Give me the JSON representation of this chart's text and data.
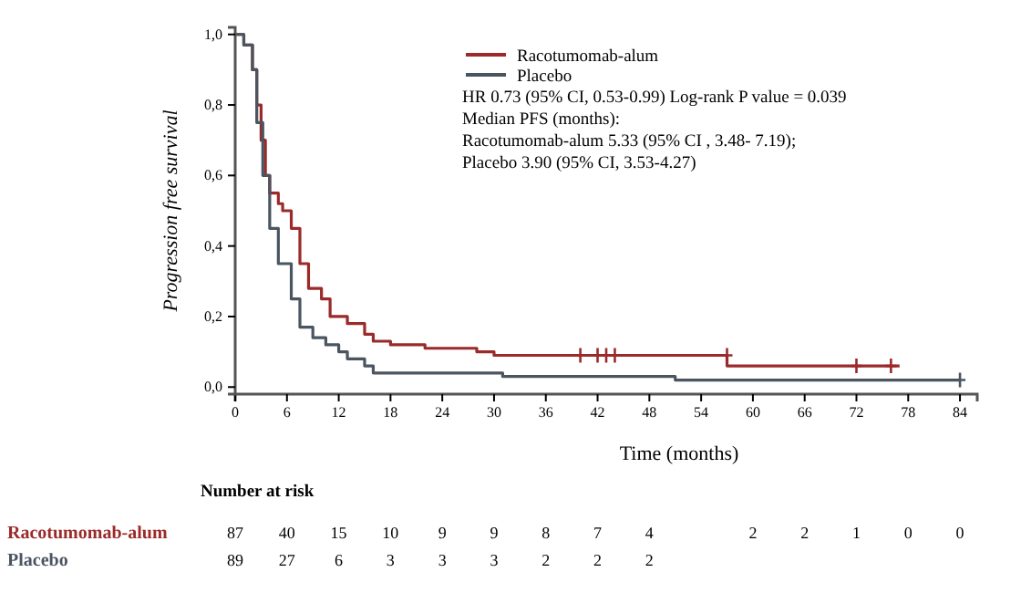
{
  "chart_data": {
    "type": "step",
    "xlabel": "Time (months)",
    "ylabel": "Progression free survival",
    "xlim": [
      0,
      86
    ],
    "ylim": [
      -0.02,
      1.02
    ],
    "xticks": [
      0,
      6,
      12,
      18,
      24,
      30,
      36,
      42,
      48,
      54,
      60,
      66,
      72,
      78,
      84
    ],
    "yticks": [
      {
        "value": 0,
        "label": "0,0"
      },
      {
        "value": 0.2,
        "label": "0,2"
      },
      {
        "value": 0.4,
        "label": "0,4"
      },
      {
        "value": 0.6,
        "label": "0,6"
      },
      {
        "value": 0.8,
        "label": "0,8"
      },
      {
        "value": 1,
        "label": "1,0"
      }
    ],
    "legend": "top",
    "grid": false,
    "marker": "none",
    "series": [
      {
        "name": "Racotumomab-alum",
        "color": "#9b2a2a",
        "x": [
          0,
          1,
          2,
          2.5,
          3,
          3.5,
          4,
          5,
          5.5,
          6.5,
          7.5,
          8.5,
          10,
          11,
          13,
          15,
          16,
          18,
          22,
          28,
          30,
          57,
          77
        ],
        "values": [
          1,
          0.97,
          0.9,
          0.8,
          0.7,
          0.6,
          0.55,
          0.52,
          0.5,
          0.45,
          0.35,
          0.28,
          0.25,
          0.2,
          0.18,
          0.15,
          0.13,
          0.12,
          0.11,
          0.1,
          0.09,
          0.06,
          0.06
        ]
      },
      {
        "name": "Placebo",
        "color": "#4a5560",
        "x": [
          0,
          1,
          2,
          2.5,
          3.2,
          4,
          5,
          6.5,
          7.5,
          9,
          10.5,
          12,
          13,
          15,
          16,
          31,
          51,
          84
        ],
        "values": [
          1,
          0.97,
          0.9,
          0.75,
          0.6,
          0.45,
          0.35,
          0.25,
          0.17,
          0.14,
          0.12,
          0.1,
          0.08,
          0.06,
          0.04,
          0.03,
          0.02,
          0.02
        ]
      },
      {
        "type": "scatter",
        "marker": "cross",
        "color": "#9b2a2a",
        "x": [
          40,
          42,
          43,
          44,
          57,
          72,
          76
        ],
        "values": [
          0.09,
          0.09,
          0.09,
          0.09,
          0.09,
          0.06,
          0.06
        ]
      },
      {
        "type": "scatter",
        "marker": "cross",
        "color": "#4a5560",
        "x": [
          84
        ],
        "values": [
          0.02
        ]
      }
    ],
    "annotations": [
      "HR 0.73 (95% CI, 0.53-0.99)  Log-rank P value = 0.039",
      "Median PFS (months):",
      "Racotumomab-alum 5.33 (95% CI , 3.48- 7.19);",
      "Placebo 3.90 (95% CI, 3.53-4.27)",
      "Number  at risk",
      "87 40 15 10 9 9 8 7 4  2 2 1 0 0",
      "89 27 6 3 3 3 2 2 2"
    ]
  }
}
